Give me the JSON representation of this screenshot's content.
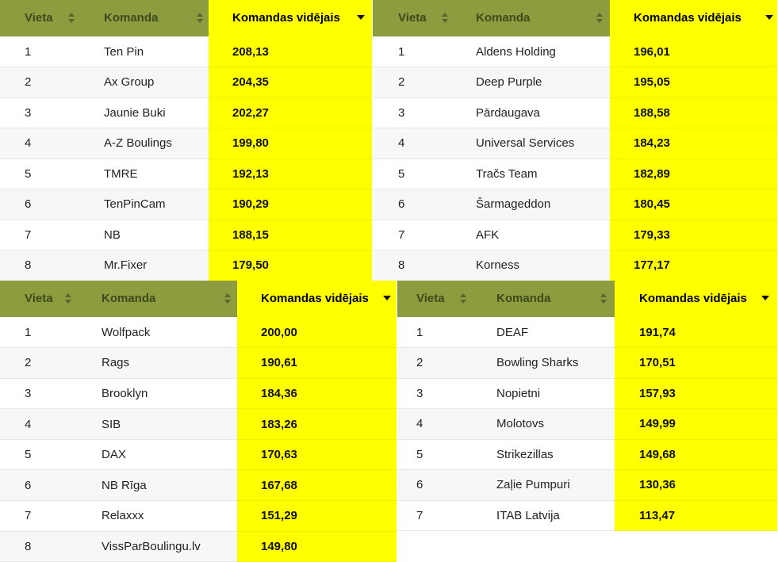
{
  "columns": {
    "place": "Vieta",
    "team": "Komanda",
    "average": "Komandas vidējais"
  },
  "tables": [
    {
      "rows": [
        {
          "place": "1",
          "team": "Ten Pin",
          "avg": "208,13"
        },
        {
          "place": "2",
          "team": "Ax Group",
          "avg": "204,35"
        },
        {
          "place": "3",
          "team": "Jaunie Buki",
          "avg": "202,27"
        },
        {
          "place": "4",
          "team": "A-Z Boulings",
          "avg": "199,80"
        },
        {
          "place": "5",
          "team": "TMRE",
          "avg": "192,13"
        },
        {
          "place": "6",
          "team": "TenPinCam",
          "avg": "190,29"
        },
        {
          "place": "7",
          "team": "NB",
          "avg": "188,15"
        },
        {
          "place": "8",
          "team": "Mr.Fixer",
          "avg": "179,50"
        }
      ]
    },
    {
      "rows": [
        {
          "place": "1",
          "team": "Aldens Holding",
          "avg": "196,01"
        },
        {
          "place": "2",
          "team": "Deep Purple",
          "avg": "195,05"
        },
        {
          "place": "3",
          "team": "Pārdaugava",
          "avg": "188,58"
        },
        {
          "place": "4",
          "team": "Universal Services",
          "avg": "184,23"
        },
        {
          "place": "5",
          "team": "Tračs Team",
          "avg": "182,89"
        },
        {
          "place": "6",
          "team": "Šarmageddon",
          "avg": "180,45"
        },
        {
          "place": "7",
          "team": "AFK",
          "avg": "179,33"
        },
        {
          "place": "8",
          "team": "Korness",
          "avg": "177,17"
        }
      ]
    },
    {
      "rows": [
        {
          "place": "1",
          "team": "Wolfpack",
          "avg": "200,00"
        },
        {
          "place": "2",
          "team": "Rags",
          "avg": "190,61"
        },
        {
          "place": "3",
          "team": "Brooklyn",
          "avg": "184,36"
        },
        {
          "place": "4",
          "team": "SIB",
          "avg": "183,26"
        },
        {
          "place": "5",
          "team": "DAX",
          "avg": "170,63"
        },
        {
          "place": "6",
          "team": "NB Rīga",
          "avg": "167,68"
        },
        {
          "place": "7",
          "team": "Relaxxx",
          "avg": "151,29"
        },
        {
          "place": "8",
          "team": "VissParBoulingu.lv",
          "avg": "149,80"
        }
      ]
    },
    {
      "rows": [
        {
          "place": "1",
          "team": "DEAF",
          "avg": "191,74"
        },
        {
          "place": "2",
          "team": "Bowling Sharks",
          "avg": "170,51"
        },
        {
          "place": "3",
          "team": "Nopietni",
          "avg": "157,93"
        },
        {
          "place": "4",
          "team": "Molotovs",
          "avg": "149,99"
        },
        {
          "place": "5",
          "team": "Strikezillas",
          "avg": "149,68"
        },
        {
          "place": "6",
          "team": "Zaļie Pumpuri",
          "avg": "130,36"
        },
        {
          "place": "7",
          "team": "ITAB Latvija",
          "avg": "113,47"
        }
      ]
    }
  ]
}
